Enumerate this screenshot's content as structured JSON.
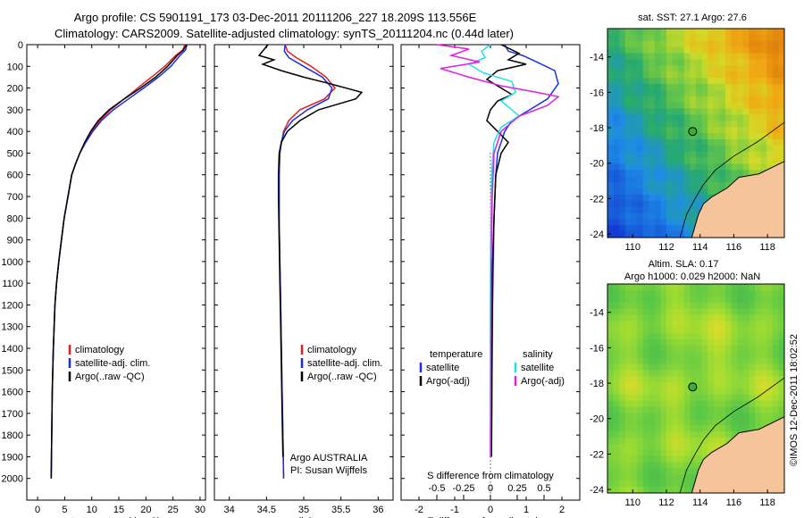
{
  "title_line1": "Argo profile: CS 5901191_173 03-Dec-2011 20111206_227 18.209S 113.556E",
  "title_line2": "Climatology: CARS2009. Satellite-adjusted climatology: synTS_20111204.nc (0.44d later)",
  "colors": {
    "climatology": "#e02020",
    "satellite": "#1a2ee0",
    "argo": "#000000",
    "sal_satellite": "#20e0e0",
    "sal_argo": "#e020e0",
    "land": "#f5c49a"
  },
  "chart_data": [
    {
      "type": "line",
      "id": "temperature",
      "xlabel": "temperature (deg C)",
      "ylabel": "",
      "xlim": [
        -2,
        31
      ],
      "ylim": [
        2100,
        0
      ],
      "xticks": [
        0,
        5,
        10,
        15,
        20,
        25,
        30
      ],
      "yticks": [
        0,
        100,
        200,
        300,
        400,
        500,
        600,
        700,
        800,
        900,
        1000,
        1100,
        1200,
        1300,
        1400,
        1500,
        1600,
        1700,
        1800,
        1900,
        2000
      ],
      "legend": [
        "climatology",
        "satellite-adj. clim.",
        "Argo(..raw -QC)"
      ],
      "series": [
        {
          "name": "climatology",
          "x": [
            27.2,
            26.8,
            25.5,
            23.5,
            21.0,
            18.5,
            16.0,
            13.5,
            11.5,
            10.0,
            8.8,
            7.8,
            7.0,
            6.3,
            5.6,
            4.9,
            4.4,
            3.9,
            3.5,
            3.2,
            2.9,
            2.7,
            2.6,
            2.5
          ],
          "y": [
            0,
            25,
            50,
            100,
            150,
            200,
            250,
            300,
            350,
            400,
            450,
            500,
            550,
            600,
            700,
            800,
            900,
            1000,
            1100,
            1200,
            1400,
            1600,
            1800,
            2000
          ]
        },
        {
          "name": "satellite-adj. clim.",
          "x": [
            27.6,
            27.3,
            26.3,
            24.6,
            22.3,
            19.6,
            16.8,
            14.0,
            11.8,
            10.2,
            8.9,
            7.8,
            7.0,
            6.3,
            5.6,
            4.9,
            4.4,
            3.9,
            3.5,
            3.2,
            2.9,
            2.7,
            2.6,
            2.5
          ],
          "y": [
            0,
            25,
            50,
            100,
            150,
            200,
            250,
            300,
            350,
            400,
            450,
            500,
            550,
            600,
            700,
            800,
            900,
            1000,
            1100,
            1200,
            1400,
            1600,
            1800,
            2000
          ]
        },
        {
          "name": "Argo(..raw -QC)",
          "x": [
            27.5,
            26.9,
            25.8,
            24.0,
            21.8,
            19.0,
            16.0,
            13.2,
            11.2,
            9.8,
            8.7,
            7.8,
            7.0,
            6.3,
            5.6,
            4.9,
            4.4,
            3.9,
            3.5,
            3.2,
            2.9,
            2.7,
            2.6,
            2.5
          ],
          "y": [
            0,
            25,
            50,
            100,
            150,
            200,
            250,
            300,
            350,
            400,
            450,
            500,
            550,
            600,
            700,
            800,
            900,
            1000,
            1100,
            1200,
            1400,
            1600,
            1800,
            2000
          ]
        }
      ]
    },
    {
      "type": "line",
      "id": "salinity",
      "xlabel": "salinity",
      "xlim": [
        33.8,
        36.2
      ],
      "ylim": [
        2100,
        0
      ],
      "xticks": [
        34,
        34.5,
        35,
        35.5,
        36
      ],
      "xticklabels": [
        "34",
        "34.5",
        "35",
        "35.5",
        "36"
      ],
      "legend": [
        "climatology",
        "satellite-adj. clim.",
        "Argo(..raw -QC)"
      ],
      "annotation": [
        "Argo AUSTRALIA",
        "PI: Susan Wijffels"
      ],
      "series": [
        {
          "name": "climatology",
          "x": [
            34.75,
            34.78,
            34.9,
            35.1,
            35.3,
            35.42,
            35.28,
            34.95,
            34.8,
            34.73,
            34.7,
            34.68,
            34.67,
            34.67,
            34.67,
            34.68,
            34.69,
            34.7,
            34.71,
            34.72,
            34.73
          ],
          "y": [
            0,
            30,
            60,
            100,
            150,
            200,
            250,
            300,
            350,
            400,
            450,
            500,
            600,
            700,
            800,
            1000,
            1200,
            1400,
            1600,
            1800,
            2000
          ]
        },
        {
          "name": "satellite-adj. clim.",
          "x": [
            34.75,
            34.74,
            34.8,
            35.0,
            35.25,
            35.38,
            35.33,
            35.05,
            34.85,
            34.74,
            34.7,
            34.68,
            34.67,
            34.67,
            34.67,
            34.68,
            34.69,
            34.7,
            34.71,
            34.72,
            34.73
          ],
          "y": [
            0,
            30,
            60,
            100,
            150,
            200,
            250,
            300,
            350,
            400,
            450,
            500,
            600,
            700,
            800,
            1000,
            1200,
            1400,
            1600,
            1800,
            2000
          ]
        },
        {
          "name": "Argo(..raw -QC)",
          "x": [
            34.52,
            34.4,
            34.6,
            34.45,
            34.7,
            35.0,
            35.35,
            35.78,
            35.7,
            35.2,
            34.95,
            34.78,
            34.7,
            34.67,
            34.66,
            34.66,
            34.67,
            34.68,
            34.69,
            34.7,
            34.71,
            34.72
          ],
          "y": [
            0,
            50,
            70,
            90,
            120,
            150,
            180,
            220,
            250,
            300,
            350,
            400,
            450,
            500,
            600,
            700,
            900,
            1100,
            1300,
            1500,
            1700,
            1900
          ]
        }
      ]
    },
    {
      "type": "line",
      "id": "differences",
      "xlabel": "T difference from climatology",
      "xlabel_top": "S difference from climatology",
      "xlim": [
        -2.5,
        2.5
      ],
      "ylim": [
        2100,
        0
      ],
      "xticks": [
        -2,
        -1,
        0,
        1,
        2
      ],
      "xticks_top": [
        -1.5,
        -0.75,
        0,
        0.75,
        1.5
      ],
      "xticklabels_top": [
        "-0.5",
        "-0.25",
        "0",
        "0.25",
        "0.5"
      ],
      "legend_left_title": "temperature",
      "legend_right_title": "salinity",
      "legend_left": [
        "satellite",
        "Argo(-adj)"
      ],
      "legend_right": [
        "satellite",
        "Argo(-adj)"
      ],
      "series": [
        {
          "name": "T satellite",
          "x": [
            0.4,
            0.5,
            0.9,
            1.3,
            1.8,
            1.9,
            1.6,
            1.1,
            0.6,
            0.4,
            0.3,
            0.2,
            0.15,
            0.1,
            0.08,
            0.06,
            0.05,
            0.04,
            0.03
          ],
          "y": [
            0,
            30,
            50,
            80,
            120,
            180,
            250,
            300,
            350,
            400,
            450,
            500,
            600,
            800,
            1000,
            1200,
            1400,
            1600,
            1900
          ]
        },
        {
          "name": "T Argo(-adj)",
          "x": [
            0.3,
            0.8,
            0.5,
            1.0,
            0.2,
            -0.1,
            0.3,
            0.6,
            0.2,
            0.0,
            -0.1,
            0.2,
            0.5,
            0.3,
            0.15,
            0.1,
            0.06,
            0.05,
            0.04,
            0.03
          ],
          "y": [
            0,
            40,
            70,
            90,
            120,
            160,
            200,
            230,
            260,
            300,
            350,
            400,
            450,
            500,
            600,
            800,
            1000,
            1200,
            1500,
            1900
          ]
        },
        {
          "name": "S satellite",
          "x": [
            0.0,
            -0.25,
            -0.15,
            -0.6,
            -0.2,
            0.6,
            0.7,
            0.3,
            0.6,
            0.8,
            0.3,
            0.1,
            0.05,
            0.02,
            0.01,
            0.0,
            0.0,
            0.0
          ],
          "y": [
            0,
            30,
            60,
            90,
            130,
            170,
            220,
            260,
            300,
            330,
            380,
            450,
            550,
            700,
            900,
            1200,
            1500,
            1900
          ]
        },
        {
          "name": "S Argo(-adj)",
          "x": [
            -1.5,
            -0.6,
            -1.1,
            -0.3,
            -1.4,
            -0.6,
            0.3,
            1.3,
            1.9,
            1.6,
            0.8,
            0.3,
            0.1,
            0.05,
            0.02,
            0.01,
            0.0
          ],
          "y": [
            0,
            20,
            50,
            80,
            110,
            150,
            190,
            220,
            240,
            280,
            330,
            400,
            500,
            700,
            1000,
            1400,
            1900
          ]
        }
      ]
    },
    {
      "type": "heatmap",
      "id": "sst_map",
      "title": "sat. SST: 27.1  Argo: 27.6",
      "xlim": [
        108.5,
        119
      ],
      "ylim": [
        -24.2,
        -12.4
      ],
      "xticks": [
        110,
        112,
        114,
        116,
        118
      ],
      "yticks": [
        -14,
        -16,
        -18,
        -20,
        -22,
        -24
      ],
      "argo_position": [
        113.556,
        -18.209
      ]
    },
    {
      "type": "heatmap",
      "id": "sla_map",
      "title_line1": "Altim. SLA: 0.17",
      "title_line2": "Argo h1000: 0.029 h2000: NaN",
      "xlim": [
        108.5,
        119
      ],
      "ylim": [
        -24.2,
        -12.4
      ],
      "xticks": [
        110,
        112,
        114,
        116,
        118
      ],
      "yticks": [
        -14,
        -16,
        -18,
        -20,
        -22,
        -24
      ],
      "argo_position": [
        113.556,
        -18.209
      ]
    }
  ],
  "side_stamp": "©IMOS 12-Dec-2011 18:02:52"
}
